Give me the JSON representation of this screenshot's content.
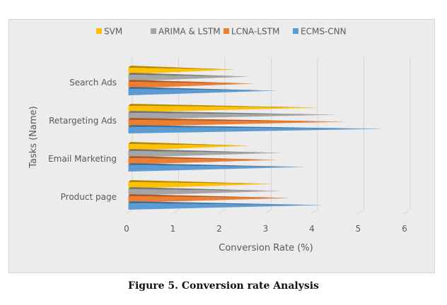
{
  "caption": "Figure 5. Conversion rate Analysis",
  "chart_data": {
    "type": "bar",
    "orientation": "horizontal",
    "style": "3d-pyramid",
    "title": "",
    "xlabel": "Conversion Rate (%)",
    "ylabel": "Tasks (Name)",
    "xlim": [
      0,
      6
    ],
    "xticks": [
      "0",
      "1",
      "2",
      "3",
      "4",
      "5",
      "6"
    ],
    "grid": true,
    "legend_position": "top",
    "categories": [
      "Search Ads",
      "Retargeting Ads",
      "Email Marketing",
      "Product page"
    ],
    "series": [
      {
        "name": "SVM",
        "color": "#ffc000",
        "values": [
          2.3,
          4.1,
          2.6,
          3.1
        ]
      },
      {
        "name": "ARIMA & LSTM",
        "color": "#a5a5a5",
        "values": [
          2.6,
          4.5,
          3.3,
          3.3
        ]
      },
      {
        "name": "LCNA-LSTM",
        "color": "#ed7d31",
        "values": [
          2.7,
          4.7,
          3.2,
          3.5
        ]
      },
      {
        "name": "ECMS-CNN",
        "color": "#5b9bd5",
        "values": [
          3.2,
          5.5,
          3.8,
          4.2
        ]
      }
    ]
  }
}
